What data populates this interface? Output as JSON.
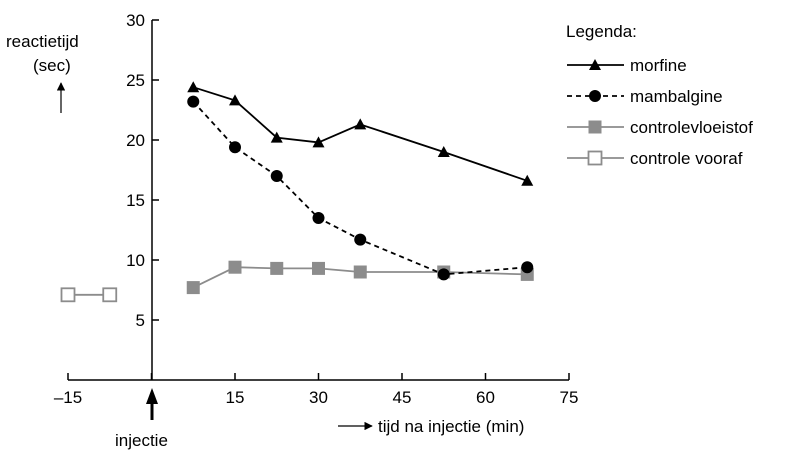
{
  "chart_data": {
    "type": "line",
    "ylabel_line1": "reactietijd",
    "ylabel_line2": "(sec)",
    "xlabel": "tijd na injectie (min)",
    "annotation": "injectie",
    "legend_title": "Legenda:",
    "xlim": [
      -15,
      75
    ],
    "ylim": [
      0,
      30
    ],
    "x_ticks": [
      -15,
      0,
      15,
      30,
      45,
      60,
      75
    ],
    "x_tick_labels": [
      "–15",
      "",
      "15",
      "30",
      "45",
      "60",
      "75"
    ],
    "y_ticks": [
      5,
      10,
      15,
      20,
      25,
      30
    ],
    "y_tick_labels": [
      "5",
      "10",
      "15",
      "20",
      "25",
      "30"
    ],
    "grid": false,
    "legend_position": "top-right",
    "series": [
      {
        "name": "morfine",
        "marker": "triangle",
        "color": "#000000",
        "dash": "solid",
        "x": [
          7.5,
          15,
          22.5,
          30,
          37.5,
          52.5,
          67.5
        ],
        "y": [
          24.4,
          23.3,
          20.2,
          19.8,
          21.3,
          19.0,
          16.6
        ]
      },
      {
        "name": "mambalgine",
        "marker": "circle",
        "color": "#000000",
        "dash": "dashed",
        "x": [
          7.5,
          15,
          22.5,
          30,
          37.5,
          52.5,
          67.5
        ],
        "y": [
          23.2,
          19.4,
          17.0,
          13.5,
          11.7,
          8.8,
          9.4
        ]
      },
      {
        "name": "controlevloeistof",
        "marker": "square-filled",
        "color": "#8c8c8c",
        "dash": "solid",
        "x": [
          7.5,
          15,
          22.5,
          30,
          37.5,
          52.5,
          67.5
        ],
        "y": [
          7.7,
          9.4,
          9.3,
          9.3,
          9.0,
          9.0,
          8.8
        ]
      },
      {
        "name": "controle vooraf",
        "marker": "square-open",
        "color": "#8c8c8c",
        "dash": "solid",
        "x": [
          -15,
          -7.5
        ],
        "y": [
          7.1,
          7.1
        ]
      }
    ]
  }
}
